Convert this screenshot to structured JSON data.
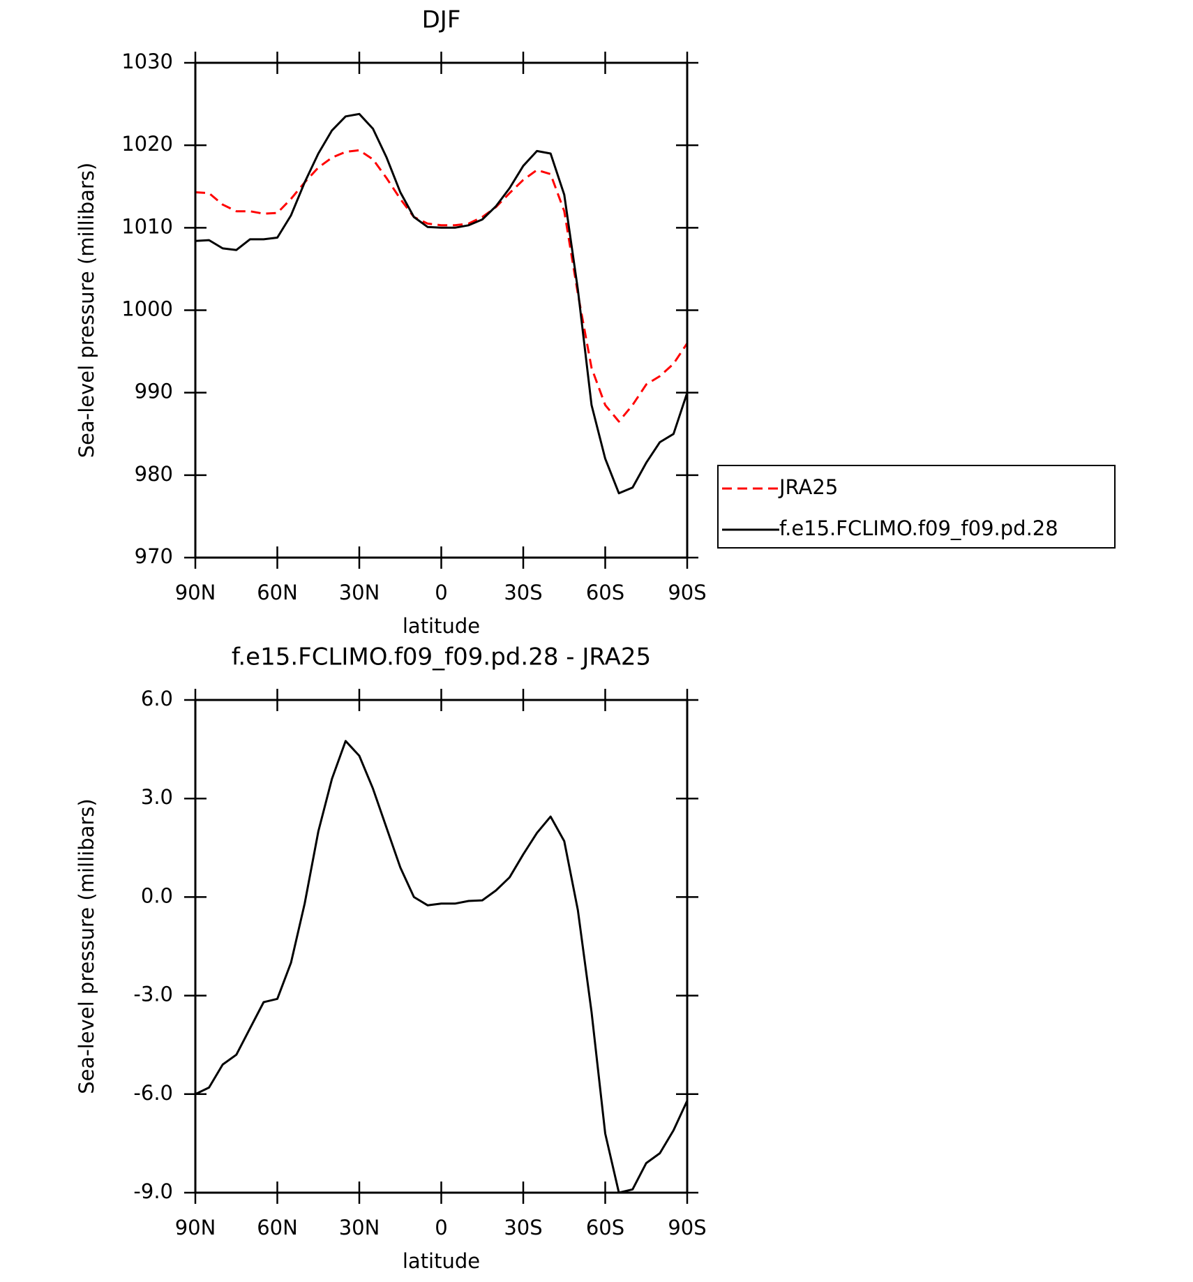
{
  "chart_data": [
    {
      "type": "line",
      "title": "DJF",
      "xlabel": "latitude",
      "ylabel": "Sea-level pressure (millibars)",
      "x": [
        90,
        85,
        80,
        75,
        70,
        65,
        60,
        55,
        50,
        45,
        40,
        35,
        30,
        25,
        20,
        15,
        10,
        5,
        0,
        -5,
        -10,
        -15,
        -20,
        -25,
        -30,
        -35,
        -40,
        -45,
        -50,
        -55,
        -60,
        -65,
        -70,
        -75,
        -80,
        -85,
        -90
      ],
      "xlim": [
        90,
        -90
      ],
      "xticks": [
        {
          "value": 90,
          "label": "90N"
        },
        {
          "value": 60,
          "label": "60N"
        },
        {
          "value": 30,
          "label": "30N"
        },
        0,
        {
          "value": -30,
          "label": "30S"
        },
        {
          "value": -60,
          "label": "60S"
        },
        {
          "value": -90,
          "label": "90S"
        }
      ],
      "ylim": [
        970,
        1030
      ],
      "yticks": [
        970,
        980,
        990,
        1000,
        1010,
        1020,
        1030
      ],
      "legend": "outside-right",
      "series": [
        {
          "name": "JRA25",
          "color": "#ff0000",
          "linestyle": "dashed",
          "values": [
            1014.3,
            1014.2,
            1012.8,
            1012,
            1012,
            1011.7,
            1011.8,
            1013.5,
            1015.5,
            1017.3,
            1018.5,
            1019.2,
            1019.4,
            1018.3,
            1016,
            1013.5,
            1011.3,
            1010.5,
            1010.3,
            1010.3,
            1010.5,
            1011.3,
            1012.5,
            1014.2,
            1015.8,
            1017,
            1016.5,
            1012,
            1002,
            993,
            988.5,
            986.5,
            988.5,
            991,
            992,
            993.5,
            996
          ]
        },
        {
          "name": "f.e15.FCLIMO.f09_f09.pd.28",
          "color": "#000000",
          "linestyle": "solid",
          "values": [
            1008.4,
            1008.5,
            1007.5,
            1007.3,
            1008.6,
            1008.6,
            1008.8,
            1011.5,
            1015.5,
            1019,
            1021.8,
            1023.5,
            1023.8,
            1022,
            1018.5,
            1014.3,
            1011.3,
            1010.1,
            1010,
            1010,
            1010.3,
            1011,
            1012.6,
            1014.8,
            1017.5,
            1019.3,
            1019,
            1014,
            1002.5,
            988.5,
            982,
            977.8,
            978.5,
            981.5,
            984,
            985,
            990
          ]
        }
      ]
    },
    {
      "type": "line",
      "title": "f.e15.FCLIMO.f09_f09.pd.28 - JRA25",
      "xlabel": "latitude",
      "ylabel": "Sea-level pressure (millibars)",
      "x": [
        90,
        85,
        80,
        75,
        70,
        65,
        60,
        55,
        50,
        45,
        40,
        35,
        30,
        25,
        20,
        15,
        10,
        5,
        0,
        -5,
        -10,
        -15,
        -20,
        -25,
        -30,
        -35,
        -40,
        -45,
        -50,
        -55,
        -60,
        -65,
        -70,
        -75,
        -80,
        -85,
        -90
      ],
      "xlim": [
        90,
        -90
      ],
      "xticks": [
        {
          "value": 90,
          "label": "90N"
        },
        {
          "value": 60,
          "label": "60N"
        },
        {
          "value": 30,
          "label": "30N"
        },
        0,
        {
          "value": -30,
          "label": "30S"
        },
        {
          "value": -60,
          "label": "60S"
        },
        {
          "value": -90,
          "label": "90S"
        }
      ],
      "ylim": [
        -9,
        6
      ],
      "yticks": [
        {
          "value": -9,
          "label": "-9.0"
        },
        {
          "value": -6,
          "label": "-6.0"
        },
        {
          "value": -3,
          "label": "-3.0"
        },
        {
          "value": 0,
          "label": "0.0"
        },
        {
          "value": 3,
          "label": "3.0"
        },
        {
          "value": 6,
          "label": "6.0"
        }
      ],
      "series": [
        {
          "color": "#000000",
          "linestyle": "solid",
          "values": [
            -6.0,
            -5.8,
            -5.1,
            -4.8,
            -4.0,
            -3.2,
            -3.1,
            -2.0,
            -0.2,
            2.0,
            3.6,
            4.75,
            4.3,
            3.3,
            2.1,
            0.9,
            0.0,
            -0.25,
            -0.2,
            -0.2,
            -0.12,
            -0.1,
            0.2,
            0.6,
            1.3,
            1.95,
            2.45,
            1.7,
            -0.4,
            -3.5,
            -7.2,
            -9.0,
            -8.9,
            -8.1,
            -7.8,
            -7.1,
            -6.2
          ]
        }
      ]
    }
  ]
}
